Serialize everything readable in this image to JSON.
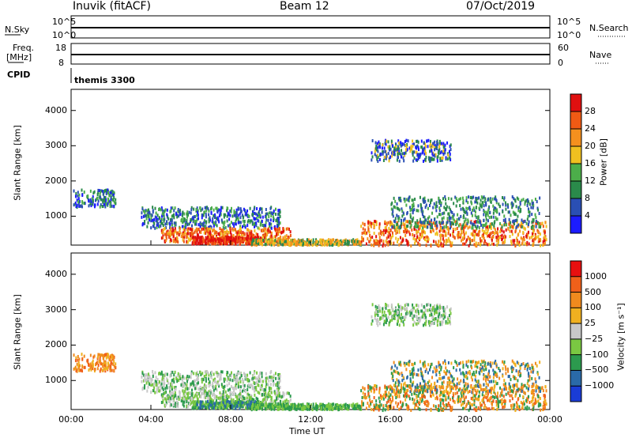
{
  "header": {
    "station": "Inuvik (fitACF)",
    "beam": "Beam 12",
    "date": "07/Oct/2019"
  },
  "top_panels": {
    "nsky_label": "N.Sky",
    "nsearch_label": "N.Search",
    "nsky_ticks": [
      "10^5",
      "10^0"
    ],
    "nsearch_ticks": [
      "10^5",
      "10^0"
    ],
    "freq_label_line1": "Freq.",
    "freq_label_line2": "[MHz]",
    "freq_ticks": [
      "18",
      "8"
    ],
    "nave_label": "Nave",
    "nave_ticks": [
      "60",
      "0"
    ],
    "cpid_label": "CPID",
    "cpid_value": "themis 3300"
  },
  "chart_data": [
    {
      "type": "heatmap",
      "name": "power",
      "ylabel": "Slant Range [km]",
      "y_ticks": [
        1000,
        2000,
        3000,
        4000
      ],
      "ylim": [
        180,
        4600
      ],
      "xlim": [
        0,
        24
      ],
      "colorbar_label": "Power [dB]",
      "colorbar_ticks": [
        "4",
        "8",
        "12",
        "16",
        "20",
        "24",
        "28"
      ],
      "colorbar_colors": [
        "#1c1cff",
        "#2a4fb4",
        "#2a8a4a",
        "#4cae4a",
        "#f0c020",
        "#f5901e",
        "#f05a14",
        "#e01010"
      ]
    },
    {
      "type": "heatmap",
      "name": "velocity",
      "ylabel": "Slant Range [km]",
      "y_ticks": [
        1000,
        2000,
        3000,
        4000
      ],
      "ylim": [
        180,
        4600
      ],
      "xlim": [
        0,
        24
      ],
      "xlabel": "Time UT",
      "x_ticks": [
        "00:00",
        "04:00",
        "08:00",
        "12:00",
        "16:00",
        "20:00",
        "00:00"
      ],
      "colorbar_label": "Velocity [m s⁻¹]",
      "colorbar_ticks": [
        "1000",
        "500",
        "100",
        "25",
        "−25",
        "−100",
        "−500",
        "−1000"
      ],
      "colorbar_colors": [
        "#1a3cd6",
        "#2a6aa8",
        "#2c9a4e",
        "#7ac842",
        "#c8c8c8",
        "#f0b020",
        "#f08a1e",
        "#f0601a",
        "#e81010"
      ]
    }
  ]
}
